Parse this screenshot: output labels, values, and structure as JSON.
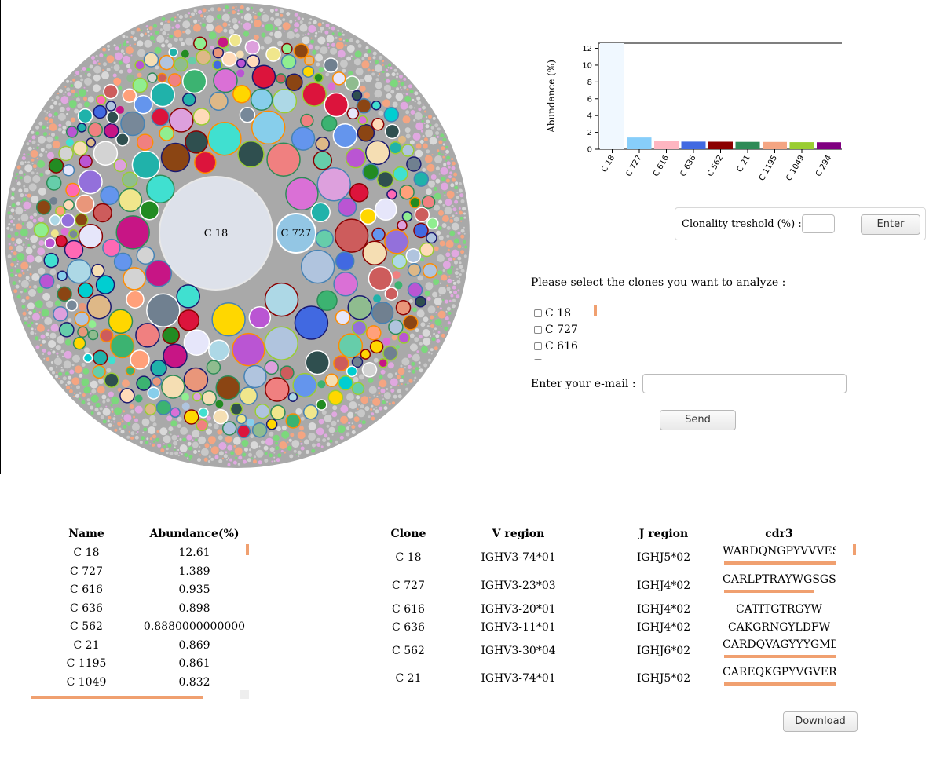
{
  "bubble_chart": {
    "outer_color": "#a9a9a9",
    "labels": [
      "C 18",
      "C 727"
    ]
  },
  "chart_data": {
    "type": "bar",
    "categories": [
      "C 18",
      "C 727",
      "C 616",
      "C 636",
      "C 562",
      "C 21",
      "C 1195",
      "C 1049",
      "C 294"
    ],
    "values": [
      12.61,
      1.389,
      0.935,
      0.898,
      0.888,
      0.869,
      0.861,
      0.832,
      0.82
    ],
    "colors": [
      "#f0f8ff",
      "#87cefa",
      "#ffb6c1",
      "#4169e1",
      "#8b0000",
      "#2e8b57",
      "#f4a582",
      "#9acd32",
      "#800080"
    ],
    "ylabel": "Abundance (%)",
    "yticks": [
      "0",
      "2",
      "4",
      "6",
      "8",
      "10",
      "12"
    ],
    "ylim": [
      0,
      12.61
    ]
  },
  "threshold": {
    "label": "Clonality treshold (%) :",
    "value": "",
    "button": "Enter"
  },
  "selection": {
    "prompt": "Please select the clones you want to analyze :",
    "clones": [
      "C 18",
      "C 727",
      "C 616"
    ]
  },
  "email": {
    "label": "Enter your e-mail :",
    "value": "",
    "button": "Send"
  },
  "abundance_table": {
    "headers": [
      "Name",
      "Abundance(%)"
    ],
    "rows": [
      [
        "C 18",
        "12.61"
      ],
      [
        "C 727",
        "1.389"
      ],
      [
        "C 616",
        "0.935"
      ],
      [
        "C 636",
        "0.898"
      ],
      [
        "C 562",
        "0.8880000000000"
      ],
      [
        "C 21",
        "0.869"
      ],
      [
        "C 1195",
        "0.861"
      ],
      [
        "C 1049",
        "0.832"
      ]
    ]
  },
  "clone_table": {
    "headers": [
      "Clone",
      "V region",
      "J region",
      "cdr3"
    ],
    "rows": [
      [
        "C 18",
        "IGHV3-74*01",
        "IGHJ5*02",
        "WARDQNGPYVVVESW"
      ],
      [
        "C 727",
        "IGHV3-23*03",
        "IGHJ4*02",
        "CARLPTRAYWGSGSYY"
      ],
      [
        "C 616",
        "IGHV3-20*01",
        "IGHJ4*02",
        "CATITGTRGYW"
      ],
      [
        "C 636",
        "IGHV3-11*01",
        "IGHJ4*02",
        "CAKGRNGYLDFW"
      ],
      [
        "C 562",
        "IGHV3-30*04",
        "IGHJ6*02",
        "CARDQVAGYYYGMDV"
      ],
      [
        "C 21",
        "IGHV3-74*01",
        "IGHJ5*02",
        "CAREQKGPYVGVERW"
      ]
    ],
    "cdr3_scroll_rows": [
      0,
      1,
      4,
      5
    ]
  },
  "download_button": "Download"
}
